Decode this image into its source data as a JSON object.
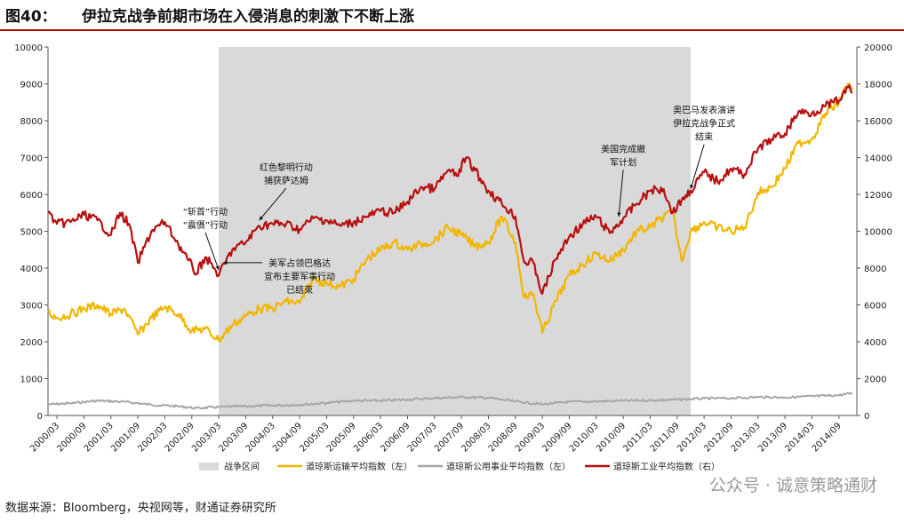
{
  "page": {
    "figure_number": "图40：",
    "title": "伊拉克战争前期市场在入侵消息的刺激下不断上涨",
    "source": "数据来源：Bloomberg，央视网等，财通证券研究所",
    "watermark": "公众号 · 诚意策略通财"
  },
  "chart_data": {
    "type": "line",
    "x_ticks": [
      "2000/03",
      "2000/09",
      "2001/03",
      "2001/09",
      "2002/03",
      "2002/09",
      "2003/03",
      "2003/09",
      "2004/03",
      "2004/09",
      "2005/03",
      "2005/09",
      "2006/03",
      "2006/09",
      "2007/03",
      "2007/09",
      "2008/03",
      "2008/09",
      "2009/03",
      "2009/09",
      "2010/03",
      "2010/09",
      "2011/03",
      "2011/09",
      "2012/03",
      "2012/09",
      "2013/03",
      "2013/09",
      "2014/03",
      "2014/09"
    ],
    "y_left": {
      "min": 0,
      "max": 10000,
      "ticks": [
        0,
        1000,
        2000,
        3000,
        4000,
        5000,
        6000,
        7000,
        8000,
        9000,
        10000
      ]
    },
    "y_right": {
      "min": 0,
      "max": 20000,
      "ticks": [
        0,
        2000,
        4000,
        6000,
        8000,
        10000,
        12000,
        14000,
        16000,
        18000,
        20000
      ]
    },
    "war_period": {
      "start": "2003/03",
      "end": "2011/12",
      "color": "#d9d9d9"
    },
    "legend": [
      {
        "key": "war",
        "label": "战争区间",
        "color": "#d9d9d9",
        "kind": "box"
      },
      {
        "key": "transport",
        "label": "道琼斯运输平均指数（左）",
        "color": "#f2b600",
        "kind": "line"
      },
      {
        "key": "utility",
        "label": "道琼斯公用事业平均指数（左）",
        "color": "#a6a6a6",
        "kind": "line"
      },
      {
        "key": "industrial",
        "label": "道琼斯工业平均指数（右）",
        "color": "#b80f0f",
        "kind": "line"
      }
    ],
    "series": [
      {
        "name": "道琼斯运输平均指数（左）",
        "axis": "left",
        "color": "#f2b600",
        "points": [
          [
            "2000/01",
            2800
          ],
          [
            "2000/03",
            2650
          ],
          [
            "2000/06",
            2750
          ],
          [
            "2000/09",
            2900
          ],
          [
            "2000/12",
            3000
          ],
          [
            "2001/03",
            2750
          ],
          [
            "2001/06",
            2900
          ],
          [
            "2001/09",
            2200
          ],
          [
            "2001/12",
            2650
          ],
          [
            "2002/03",
            2950
          ],
          [
            "2002/06",
            2750
          ],
          [
            "2002/09",
            2300
          ],
          [
            "2002/12",
            2350
          ],
          [
            "2003/03",
            2050
          ],
          [
            "2003/06",
            2450
          ],
          [
            "2003/09",
            2700
          ],
          [
            "2003/12",
            2900
          ],
          [
            "2004/03",
            2900
          ],
          [
            "2004/06",
            3100
          ],
          [
            "2004/09",
            3050
          ],
          [
            "2004/12",
            3700
          ],
          [
            "2005/03",
            3600
          ],
          [
            "2005/06",
            3500
          ],
          [
            "2005/09",
            3700
          ],
          [
            "2005/12",
            4250
          ],
          [
            "2006/03",
            4500
          ],
          [
            "2006/06",
            4700
          ],
          [
            "2006/09",
            4500
          ],
          [
            "2006/12",
            4650
          ],
          [
            "2007/03",
            4750
          ],
          [
            "2007/06",
            5100
          ],
          [
            "2007/09",
            4900
          ],
          [
            "2007/12",
            4600
          ],
          [
            "2008/03",
            4700
          ],
          [
            "2008/06",
            5400
          ],
          [
            "2008/09",
            4700
          ],
          [
            "2008/11",
            3200
          ],
          [
            "2009/01",
            3300
          ],
          [
            "2009/03",
            2250
          ],
          [
            "2009/06",
            3100
          ],
          [
            "2009/09",
            3800
          ],
          [
            "2009/12",
            4100
          ],
          [
            "2010/03",
            4400
          ],
          [
            "2010/06",
            4200
          ],
          [
            "2010/09",
            4500
          ],
          [
            "2010/12",
            5000
          ],
          [
            "2011/03",
            5100
          ],
          [
            "2011/06",
            5400
          ],
          [
            "2011/08",
            5500
          ],
          [
            "2011/10",
            4200
          ],
          [
            "2011/12",
            5000
          ],
          [
            "2012/03",
            5250
          ],
          [
            "2012/06",
            5100
          ],
          [
            "2012/09",
            5000
          ],
          [
            "2012/12",
            5100
          ],
          [
            "2013/03",
            6050
          ],
          [
            "2013/06",
            6200
          ],
          [
            "2013/09",
            6700
          ],
          [
            "2013/12",
            7400
          ],
          [
            "2014/03",
            7500
          ],
          [
            "2014/06",
            8200
          ],
          [
            "2014/09",
            8500
          ],
          [
            "2014/11",
            9000
          ],
          [
            "2014/12",
            8900
          ]
        ]
      },
      {
        "name": "道琼斯公用事业平均指数（左）",
        "axis": "left",
        "color": "#a6a6a6",
        "points": [
          [
            "2000/01",
            300
          ],
          [
            "2000/06",
            330
          ],
          [
            "2000/12",
            400
          ],
          [
            "2001/06",
            370
          ],
          [
            "2001/12",
            290
          ],
          [
            "2002/06",
            250
          ],
          [
            "2002/10",
            200
          ],
          [
            "2003/03",
            230
          ],
          [
            "2003/09",
            250
          ],
          [
            "2004/03",
            270
          ],
          [
            "2004/09",
            290
          ],
          [
            "2005/03",
            340
          ],
          [
            "2005/09",
            400
          ],
          [
            "2006/03",
            400
          ],
          [
            "2006/09",
            430
          ],
          [
            "2007/03",
            470
          ],
          [
            "2007/09",
            500
          ],
          [
            "2008/03",
            480
          ],
          [
            "2008/09",
            380
          ],
          [
            "2009/03",
            300
          ],
          [
            "2009/09",
            370
          ],
          [
            "2010/03",
            380
          ],
          [
            "2010/09",
            400
          ],
          [
            "2011/03",
            410
          ],
          [
            "2011/09",
            430
          ],
          [
            "2012/03",
            460
          ],
          [
            "2012/09",
            470
          ],
          [
            "2013/03",
            500
          ],
          [
            "2013/09",
            490
          ],
          [
            "2014/03",
            520
          ],
          [
            "2014/09",
            550
          ],
          [
            "2014/12",
            610
          ]
        ]
      },
      {
        "name": "道琼斯工业平均指数（右）",
        "axis": "right",
        "color": "#b80f0f",
        "points": [
          [
            "2000/01",
            11000
          ],
          [
            "2000/03",
            10400
          ],
          [
            "2000/06",
            10500
          ],
          [
            "2000/09",
            10900
          ],
          [
            "2000/12",
            10600
          ],
          [
            "2001/03",
            9800
          ],
          [
            "2001/05",
            11000
          ],
          [
            "2001/07",
            10400
          ],
          [
            "2001/09",
            8300
          ],
          [
            "2001/12",
            10000
          ],
          [
            "2002/03",
            10500
          ],
          [
            "2002/06",
            9300
          ],
          [
            "2002/08",
            8500
          ],
          [
            "2002/10",
            7700
          ],
          [
            "2002/12",
            8600
          ],
          [
            "2003/02",
            8000
          ],
          [
            "2003/03",
            7600
          ],
          [
            "2003/06",
            9000
          ],
          [
            "2003/09",
            9400
          ],
          [
            "2003/12",
            10300
          ],
          [
            "2004/03",
            10400
          ],
          [
            "2004/06",
            10400
          ],
          [
            "2004/09",
            10100
          ],
          [
            "2004/12",
            10700
          ],
          [
            "2005/03",
            10600
          ],
          [
            "2005/06",
            10300
          ],
          [
            "2005/09",
            10500
          ],
          [
            "2005/12",
            10800
          ],
          [
            "2006/03",
            11100
          ],
          [
            "2006/06",
            11000
          ],
          [
            "2006/09",
            11600
          ],
          [
            "2006/12",
            12400
          ],
          [
            "2007/03",
            12300
          ],
          [
            "2007/06",
            13300
          ],
          [
            "2007/08",
            13000
          ],
          [
            "2007/10",
            14000
          ],
          [
            "2007/12",
            13300
          ],
          [
            "2008/03",
            12200
          ],
          [
            "2008/06",
            11500
          ],
          [
            "2008/09",
            10800
          ],
          [
            "2008/11",
            8300
          ],
          [
            "2009/01",
            8300
          ],
          [
            "2009/03",
            6600
          ],
          [
            "2009/06",
            8500
          ],
          [
            "2009/09",
            9700
          ],
          [
            "2009/12",
            10400
          ],
          [
            "2010/03",
            10800
          ],
          [
            "2010/06",
            9900
          ],
          [
            "2010/09",
            10700
          ],
          [
            "2010/12",
            11500
          ],
          [
            "2011/03",
            12200
          ],
          [
            "2011/06",
            12300
          ],
          [
            "2011/08",
            11000
          ],
          [
            "2011/10",
            11700
          ],
          [
            "2011/12",
            12200
          ],
          [
            "2012/03",
            13200
          ],
          [
            "2012/06",
            12700
          ],
          [
            "2012/09",
            13400
          ],
          [
            "2012/12",
            13100
          ],
          [
            "2013/03",
            14500
          ],
          [
            "2013/06",
            15000
          ],
          [
            "2013/09",
            15300
          ],
          [
            "2013/12",
            16500
          ],
          [
            "2014/03",
            16400
          ],
          [
            "2014/06",
            16800
          ],
          [
            "2014/09",
            17100
          ],
          [
            "2014/11",
            17800
          ],
          [
            "2014/12",
            17500
          ]
        ]
      }
    ],
    "annotations": [
      {
        "lines": [
          "“斩首”行动",
          "“震慑”行动"
        ],
        "date": "2003/03",
        "axis": "right",
        "value": 7700,
        "text_date": "2002/12",
        "text_value": 10900,
        "align": "middle"
      },
      {
        "lines": [
          "红色黎明行动",
          "捕获萨达姆"
        ],
        "date": "2003/12",
        "axis": "right",
        "value": 10400,
        "text_date": "2004/06",
        "text_value": 13300,
        "align": "middle"
      },
      {
        "lines": [
          "美军占领巴格达",
          "宣布主要军事行动",
          "已结束"
        ],
        "date": "2003/04",
        "axis": "right",
        "value": 8100,
        "text_date": "2004/09",
        "text_value": 8100,
        "align": "middle"
      },
      {
        "lines": [
          "美国完成撤",
          "军计划"
        ],
        "date": "2010/08",
        "axis": "right",
        "value": 10600,
        "text_date": "2010/09",
        "text_value": 14300,
        "align": "middle"
      },
      {
        "lines": [
          "奥巴马发表演讲",
          "伊拉克战争正式",
          "结束"
        ],
        "date": "2011/12",
        "axis": "right",
        "value": 12100,
        "text_date": "2012/03",
        "text_value": 16400,
        "align": "middle"
      }
    ]
  }
}
